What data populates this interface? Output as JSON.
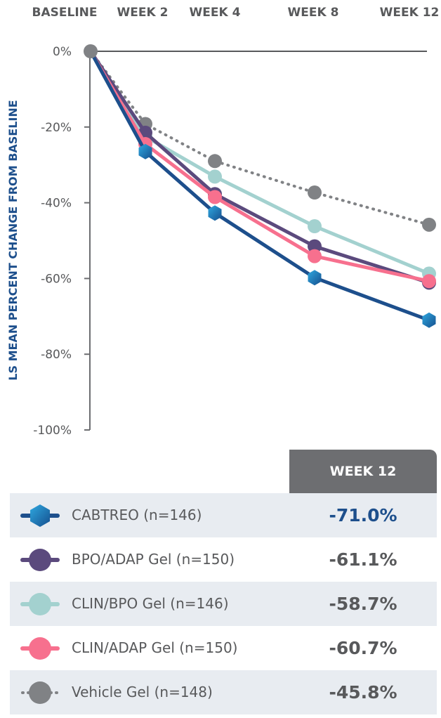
{
  "chart_data": {
    "type": "line",
    "x": [
      "BASELINE",
      "WEEK 2",
      "WEEK 4",
      "WEEK 8",
      "WEEK 12"
    ],
    "ylabel": "LS MEAN PERCENT CHANGE FROM BASELINE",
    "ylim": [
      -100,
      0
    ],
    "yticks": [
      "0%",
      "-20%",
      "-40%",
      "-60%",
      "-80%",
      "-100%"
    ],
    "ytick_values": [
      0,
      -20,
      -40,
      -60,
      -80,
      -100
    ],
    "series": [
      {
        "name": "CABTREO (n=146)",
        "values": [
          0,
          -26.5,
          -42.7,
          -59.8,
          -71.0
        ],
        "color": "#1d4f8c",
        "marker": "hexagon",
        "dash": "solid"
      },
      {
        "name": "BPO/ADAP Gel (n=150)",
        "values": [
          0,
          -21.5,
          -37.7,
          -51.5,
          -61.1
        ],
        "color": "#5b4a7d",
        "marker": "circle",
        "dash": "solid"
      },
      {
        "name": "CLIN/BPO Gel (n=146)",
        "values": [
          0,
          -22.5,
          -33.1,
          -46.2,
          -58.7
        ],
        "color": "#a3d1cf",
        "marker": "circle",
        "dash": "solid"
      },
      {
        "name": "CLIN/ADAP Gel (n=150)",
        "values": [
          0,
          -24.5,
          -38.5,
          -54.1,
          -60.7
        ],
        "color": "#f7708e",
        "marker": "circle",
        "dash": "solid"
      },
      {
        "name": "Vehicle Gel (n=148)",
        "values": [
          0,
          -19.2,
          -29.0,
          -37.3,
          -45.8
        ],
        "color": "#808285",
        "marker": "circle",
        "dash": "dotted"
      }
    ]
  },
  "table": {
    "header": "WEEK 12",
    "rows": [
      {
        "label": "CABTREO (n=146)",
        "value": "-71.0%"
      },
      {
        "label": "BPO/ADAP Gel (n=150)",
        "value": "-61.1%"
      },
      {
        "label": "CLIN/BPO Gel (n=146)",
        "value": "-58.7%"
      },
      {
        "label": "CLIN/ADAP Gel (n=150)",
        "value": "-60.7%"
      },
      {
        "label": "Vehicle Gel (n=148)",
        "value": "-45.8%"
      }
    ]
  }
}
